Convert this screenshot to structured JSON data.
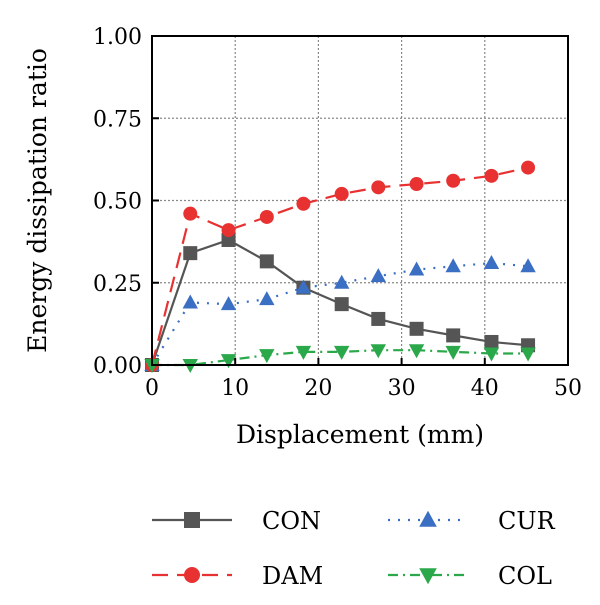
{
  "chart_data": {
    "type": "line",
    "title": "",
    "xlabel": "Displacement (mm)",
    "ylabel": "Energy dissipation ratio",
    "xlim": [
      0,
      50
    ],
    "ylim": [
      0,
      1
    ],
    "x_ticks": [
      0,
      10,
      20,
      30,
      40,
      50
    ],
    "y_ticks": [
      "0.00",
      "0.25",
      "0.50",
      "0.75",
      "1.00"
    ],
    "grid": true,
    "legend_position": "bottom",
    "series": [
      {
        "name": "CON",
        "color": "#555555",
        "line_style": "solid",
        "marker": "square",
        "x": [
          0,
          4.6,
          9.2,
          13.8,
          18.2,
          22.8,
          27.2,
          31.8,
          36.2,
          40.8,
          45.2
        ],
        "y": [
          0.0,
          0.34,
          0.38,
          0.315,
          0.235,
          0.185,
          0.14,
          0.11,
          0.09,
          0.07,
          0.06
        ]
      },
      {
        "name": "CUR",
        "color": "#3b6fc4",
        "line_style": "dotted",
        "marker": "triangle-up",
        "x": [
          0,
          4.6,
          9.2,
          13.8,
          18.2,
          22.8,
          27.2,
          31.8,
          36.2,
          40.8,
          45.2
        ],
        "y": [
          0.0,
          0.19,
          0.185,
          0.2,
          0.235,
          0.25,
          0.27,
          0.29,
          0.3,
          0.31,
          0.3
        ]
      },
      {
        "name": "DAM",
        "color": "#e83232",
        "line_style": "dashed",
        "marker": "circle",
        "x": [
          0,
          4.6,
          9.2,
          13.8,
          18.2,
          22.8,
          27.2,
          31.8,
          36.2,
          40.8,
          45.2
        ],
        "y": [
          0.0,
          0.46,
          0.41,
          0.45,
          0.49,
          0.52,
          0.54,
          0.55,
          0.56,
          0.575,
          0.6
        ]
      },
      {
        "name": "COL",
        "color": "#2aa84a",
        "line_style": "dashdot",
        "marker": "triangle-down",
        "x": [
          0,
          4.6,
          9.2,
          13.8,
          18.2,
          22.8,
          27.2,
          31.8,
          36.2,
          40.8,
          45.2
        ],
        "y": [
          0.0,
          0.0,
          0.015,
          0.03,
          0.04,
          0.04,
          0.045,
          0.045,
          0.04,
          0.035,
          0.035
        ]
      }
    ]
  }
}
